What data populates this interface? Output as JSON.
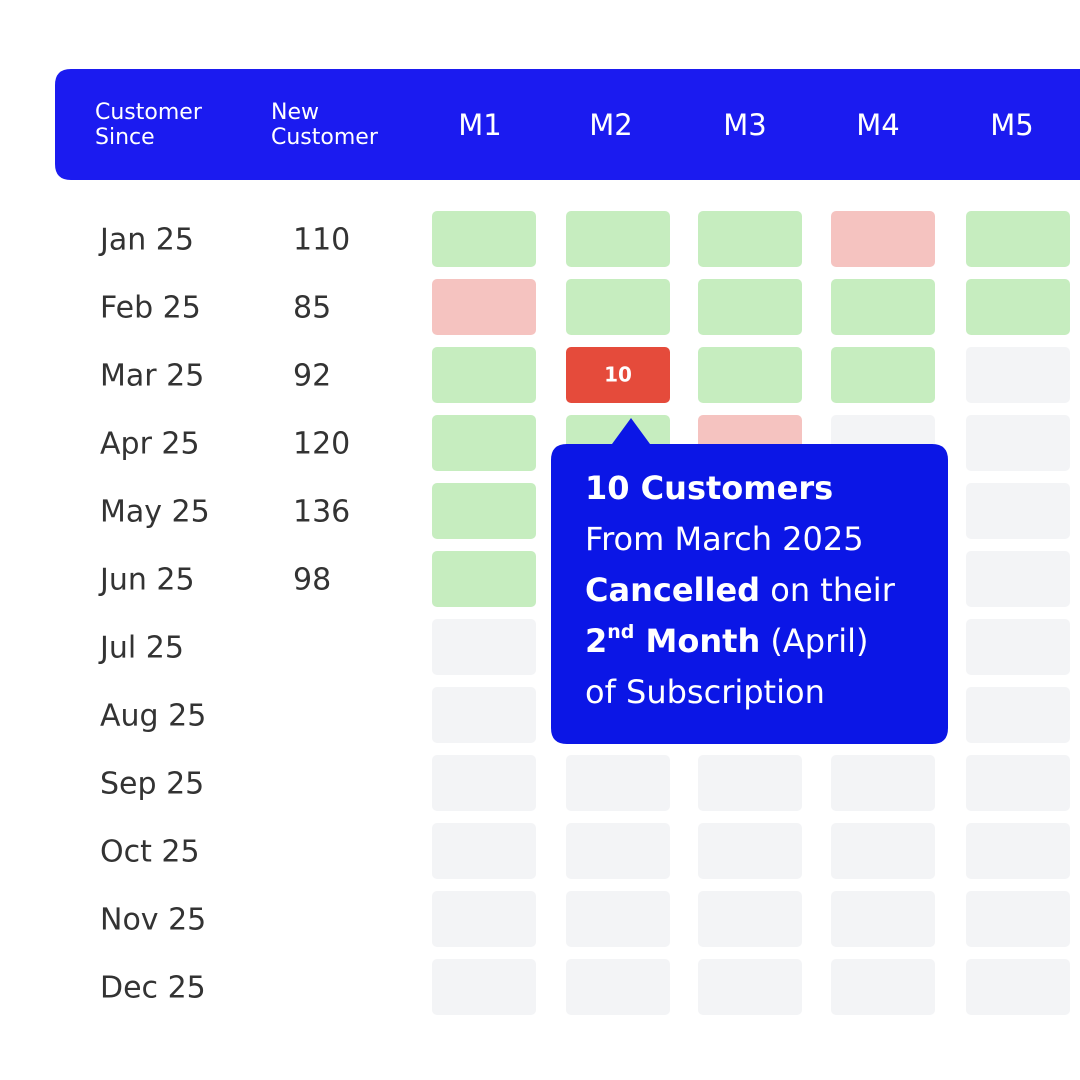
{
  "header": {
    "columns": [
      "Customer Since",
      "New Customer",
      "M1",
      "M2",
      "M3",
      "M4",
      "M5"
    ],
    "color": "#1b1bf0"
  },
  "table": {
    "rows": [
      {
        "month": "Jan 25",
        "new": 110,
        "cells": [
          "#c6edbf",
          "#c6edbf",
          "#c6edbf",
          "#f5c3c0",
          "#c6edbf"
        ]
      },
      {
        "month": "Feb 25",
        "new": 85,
        "cells": [
          "#f5c3c0",
          "#c6edbf",
          "#c6edbf",
          "#c6edbf",
          "#c6edbf"
        ]
      },
      {
        "month": "Mar 25",
        "new": 92,
        "cells": [
          "#c6edbf",
          {
            "color": "#e54b3b",
            "label": 10
          },
          "#c6edbf",
          "#c6edbf",
          "#f3f4f6"
        ]
      },
      {
        "month": "Apr 25",
        "new": 120,
        "cells": [
          "#c6edbf",
          "#c6edbf",
          "#f5c3c0",
          "#f3f4f6",
          "#f3f4f6"
        ]
      },
      {
        "month": "May 25",
        "new": 136,
        "cells": [
          "#c6edbf",
          "#f3f4f6",
          "#f3f4f6",
          "#f3f4f6",
          "#f3f4f6"
        ]
      },
      {
        "month": "Jun 25",
        "new": 98,
        "cells": [
          "#c6edbf",
          "#f3f4f6",
          "#f3f4f6",
          "#f3f4f6",
          "#f3f4f6"
        ]
      },
      {
        "month": "Jul 25",
        "cells": [
          "#f3f4f6",
          "#f3f4f6",
          "#f3f4f6",
          "#f3f4f6",
          "#f3f4f6"
        ]
      },
      {
        "month": "Aug 25",
        "cells": [
          "#f3f4f6",
          "#f3f4f6",
          "#f3f4f6",
          "#f3f4f6",
          "#f3f4f6"
        ]
      },
      {
        "month": "Sep 25",
        "cells": [
          "#f3f4f6",
          "#f3f4f6",
          "#f3f4f6",
          "#f3f4f6",
          "#f3f4f6"
        ]
      },
      {
        "month": "Oct 25",
        "cells": [
          "#f3f4f6",
          "#f3f4f6",
          "#f3f4f6",
          "#f3f4f6",
          "#f3f4f6"
        ]
      },
      {
        "month": "Nov 25",
        "cells": [
          "#f3f4f6",
          "#f3f4f6",
          "#f3f4f6",
          "#f3f4f6",
          "#f3f4f6"
        ]
      },
      {
        "month": "Dec 25",
        "cells": [
          "#f3f4f6",
          "#f3f4f6",
          "#f3f4f6",
          "#f3f4f6",
          "#f3f4f6"
        ]
      }
    ]
  },
  "tooltip": {
    "color": "#0b16e6",
    "lines": [
      [
        {
          "text": "10 Customers",
          "bold": true
        }
      ],
      [
        {
          "text": "From March 2025",
          "bold": false
        }
      ],
      [
        {
          "text": "Cancelled",
          "bold": true
        },
        {
          "text": " on their",
          "bold": false
        }
      ],
      [
        {
          "text": "2",
          "bold": true
        },
        {
          "text": "nd",
          "bold": true,
          "sup": true
        },
        {
          "text": " Month",
          "bold": true
        },
        {
          "text": " (April)",
          "bold": false
        }
      ],
      [
        {
          "text": "of Subscription",
          "bold": false
        }
      ]
    ]
  }
}
